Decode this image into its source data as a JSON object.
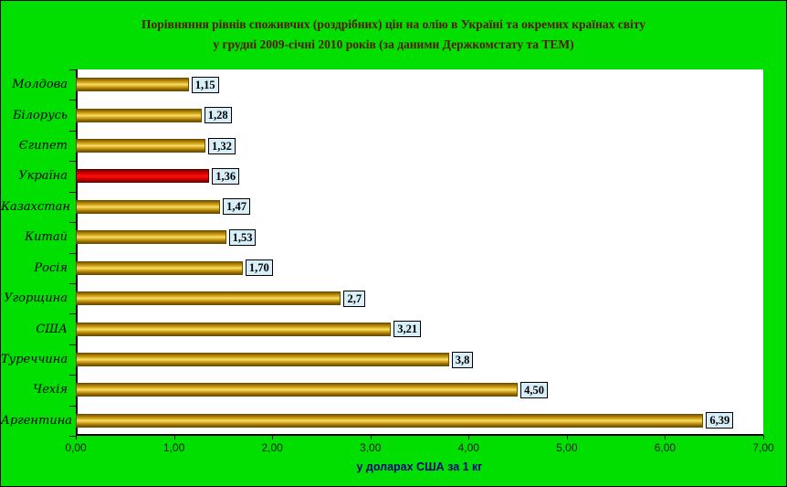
{
  "window": {
    "background_color": "#00df00",
    "border_color": "#000000",
    "plot_background": "#ffffff"
  },
  "title": {
    "line1": "Порівняння рівнів споживчих (роздрібних) цін на олію в Україні та окремих країнах світу",
    "line2": "у грудні 2009-січні 2010 років (за даними Держкомстату та ТЕМ)",
    "color": "#5a1404"
  },
  "chart_data": {
    "type": "bar",
    "orientation": "horizontal",
    "title": "Порівняння рівнів споживчих (роздрібних) цін на олію в Україні та окремих країнах світу у грудні 2009-січні 2010 років (за даними Держкомстату та ТЕМ)",
    "categories": [
      "Молдова",
      "Білорусь",
      "Єгипет",
      "Україна",
      "Казахстан",
      "Китай",
      "Росія",
      "Угорщина",
      "США",
      "Туреччина",
      "Чехія",
      "Аргентина"
    ],
    "values": [
      1.15,
      1.28,
      1.32,
      1.36,
      1.47,
      1.53,
      1.7,
      2.7,
      3.21,
      3.8,
      4.5,
      6.39
    ],
    "value_labels": [
      "1,15",
      "1,28",
      "1,32",
      "1,36",
      "1,47",
      "1,53",
      "1,70",
      "2,7",
      "3,21",
      "3,8",
      "4,50",
      "6,39"
    ],
    "highlight_category": "Україна",
    "highlight_index": 3,
    "xlabel": "у доларах США за 1 кг",
    "ylabel": "",
    "xlim": [
      0,
      7
    ],
    "x_ticks": [
      "0,00",
      "1,00",
      "2,00",
      "3,00",
      "4,00",
      "5,00",
      "6,00",
      "7,00"
    ],
    "grid": false,
    "legend": false,
    "bar_color": "#c8960c",
    "highlight_color": "#e40000",
    "value_box_background": "#d8eef8",
    "xlabel_color": "#000080"
  }
}
